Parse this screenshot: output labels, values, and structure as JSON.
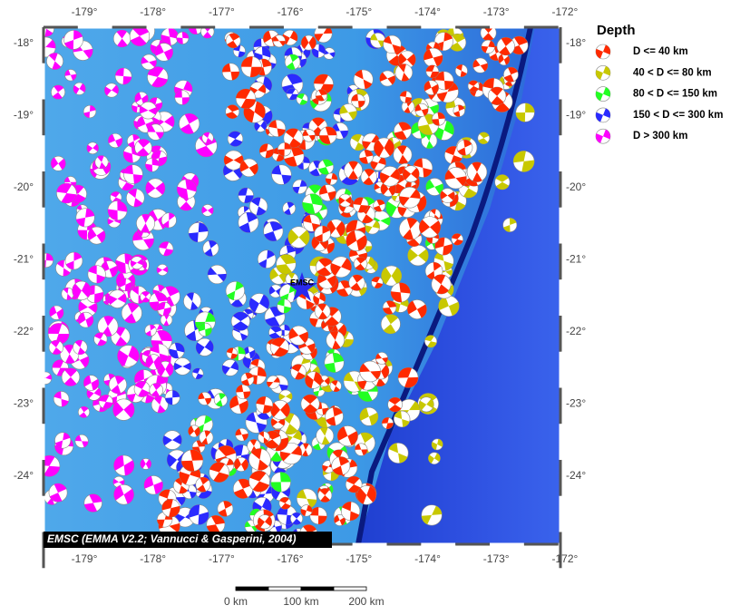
{
  "map": {
    "x_ticks": [
      "-179°",
      "-178°",
      "-177°",
      "-176°",
      "-175°",
      "-174°",
      "-173°",
      "-172°"
    ],
    "y_ticks": [
      "-18°",
      "-19°",
      "-20°",
      "-21°",
      "-22°",
      "-23°",
      "-24°"
    ],
    "marker_label": "EMSC",
    "credit": "EMSC (EMMA V2.2; Vannucci & Gasperini, 2004)",
    "legend": {
      "title": "Depth",
      "items": [
        {
          "label": "D <= 40 km",
          "color": "#ff2a00"
        },
        {
          "label": "40 < D <= 80 km",
          "color": "#c8c800"
        },
        {
          "label": "80 < D <= 150 km",
          "color": "#22ff22"
        },
        {
          "label": "150 < D <= 300 km",
          "color": "#2a2aff"
        },
        {
          "label": "D > 300 km",
          "color": "#ff00ff"
        }
      ]
    },
    "scale_bar": {
      "labels": [
        "0 km",
        "100 km",
        "200 km"
      ]
    }
  }
}
